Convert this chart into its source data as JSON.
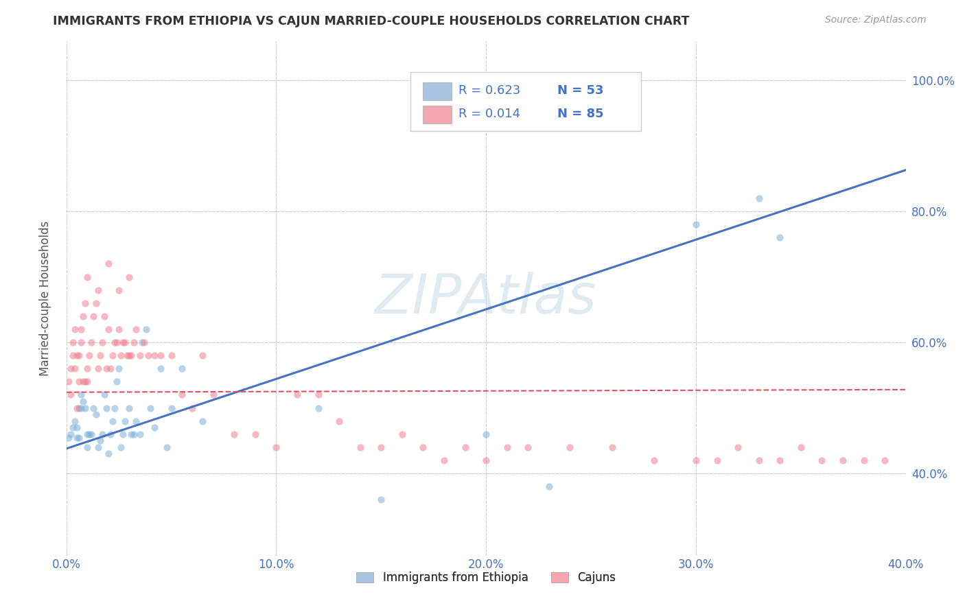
{
  "title": "IMMIGRANTS FROM ETHIOPIA VS CAJUN MARRIED-COUPLE HOUSEHOLDS CORRELATION CHART",
  "source": "Source: ZipAtlas.com",
  "ylabel": "Married-couple Households",
  "xlim": [
    0.0,
    0.4
  ],
  "ylim": [
    0.275,
    1.06
  ],
  "xtick_labels": [
    "0.0%",
    "10.0%",
    "20.0%",
    "30.0%",
    "40.0%"
  ],
  "xtick_vals": [
    0.0,
    0.1,
    0.2,
    0.3,
    0.4
  ],
  "ytick_labels": [
    "40.0%",
    "60.0%",
    "80.0%",
    "100.0%"
  ],
  "ytick_vals": [
    0.4,
    0.6,
    0.8,
    1.0
  ],
  "blue_scatter_x": [
    0.001,
    0.002,
    0.003,
    0.004,
    0.005,
    0.005,
    0.006,
    0.006,
    0.007,
    0.007,
    0.008,
    0.009,
    0.01,
    0.01,
    0.011,
    0.012,
    0.013,
    0.014,
    0.015,
    0.016,
    0.017,
    0.018,
    0.019,
    0.02,
    0.021,
    0.022,
    0.023,
    0.024,
    0.025,
    0.026,
    0.027,
    0.028,
    0.03,
    0.031,
    0.032,
    0.033,
    0.035,
    0.036,
    0.038,
    0.04,
    0.042,
    0.045,
    0.048,
    0.05,
    0.055,
    0.065,
    0.12,
    0.15,
    0.2,
    0.23,
    0.3,
    0.33,
    0.34
  ],
  "blue_scatter_y": [
    0.455,
    0.46,
    0.47,
    0.48,
    0.455,
    0.47,
    0.455,
    0.5,
    0.5,
    0.52,
    0.51,
    0.5,
    0.44,
    0.46,
    0.46,
    0.46,
    0.5,
    0.49,
    0.44,
    0.45,
    0.46,
    0.52,
    0.5,
    0.43,
    0.46,
    0.48,
    0.5,
    0.54,
    0.56,
    0.44,
    0.46,
    0.48,
    0.5,
    0.46,
    0.46,
    0.48,
    0.46,
    0.6,
    0.62,
    0.5,
    0.47,
    0.56,
    0.44,
    0.5,
    0.56,
    0.48,
    0.5,
    0.36,
    0.46,
    0.38,
    0.78,
    0.82,
    0.76
  ],
  "pink_scatter_x": [
    0.001,
    0.002,
    0.002,
    0.003,
    0.003,
    0.004,
    0.004,
    0.005,
    0.005,
    0.006,
    0.006,
    0.007,
    0.007,
    0.008,
    0.008,
    0.009,
    0.009,
    0.01,
    0.01,
    0.011,
    0.012,
    0.013,
    0.014,
    0.015,
    0.016,
    0.017,
    0.018,
    0.019,
    0.02,
    0.021,
    0.022,
    0.023,
    0.024,
    0.025,
    0.026,
    0.027,
    0.028,
    0.029,
    0.03,
    0.031,
    0.032,
    0.033,
    0.035,
    0.037,
    0.039,
    0.042,
    0.045,
    0.05,
    0.055,
    0.06,
    0.065,
    0.07,
    0.08,
    0.09,
    0.1,
    0.11,
    0.12,
    0.13,
    0.14,
    0.15,
    0.16,
    0.17,
    0.18,
    0.19,
    0.2,
    0.21,
    0.22,
    0.24,
    0.26,
    0.28,
    0.3,
    0.31,
    0.32,
    0.33,
    0.34,
    0.35,
    0.36,
    0.37,
    0.38,
    0.39,
    0.01,
    0.015,
    0.02,
    0.025,
    0.03
  ],
  "pink_scatter_y": [
    0.54,
    0.56,
    0.52,
    0.58,
    0.6,
    0.62,
    0.56,
    0.58,
    0.5,
    0.54,
    0.58,
    0.6,
    0.62,
    0.64,
    0.54,
    0.66,
    0.54,
    0.54,
    0.56,
    0.58,
    0.6,
    0.64,
    0.66,
    0.56,
    0.58,
    0.6,
    0.64,
    0.56,
    0.62,
    0.56,
    0.58,
    0.6,
    0.6,
    0.62,
    0.58,
    0.6,
    0.6,
    0.58,
    0.58,
    0.58,
    0.6,
    0.62,
    0.58,
    0.6,
    0.58,
    0.58,
    0.58,
    0.58,
    0.52,
    0.5,
    0.58,
    0.52,
    0.46,
    0.46,
    0.44,
    0.52,
    0.52,
    0.48,
    0.44,
    0.44,
    0.46,
    0.44,
    0.42,
    0.44,
    0.42,
    0.44,
    0.44,
    0.44,
    0.44,
    0.42,
    0.42,
    0.42,
    0.44,
    0.42,
    0.42,
    0.44,
    0.42,
    0.42,
    0.42,
    0.42,
    0.7,
    0.68,
    0.72,
    0.68,
    0.7
  ],
  "blue_line_x": [
    0.0,
    0.4
  ],
  "blue_line_y": [
    0.438,
    0.863
  ],
  "pink_line_x": [
    0.0,
    0.4
  ],
  "pink_line_y": [
    0.524,
    0.528
  ],
  "scatter_alpha": 0.55,
  "scatter_size": 55,
  "blue_color": "#7ab0d8",
  "pink_color": "#f08090",
  "blue_line_color": "#4472c4",
  "pink_line_color": "#e05060",
  "grid_color": "#cccccc",
  "watermark_text": "ZIPAtlas",
  "watermark_color": "#ccdce8",
  "watermark_alpha": 0.6,
  "background_color": "#ffffff",
  "legend_box_blue": "#a8c4e0",
  "legend_box_pink": "#f4a7b0",
  "legend_text_color": "#4472c4",
  "legend_r_blue": "0.623",
  "legend_n_blue": "53",
  "legend_r_pink": "0.014",
  "legend_n_pink": "85"
}
